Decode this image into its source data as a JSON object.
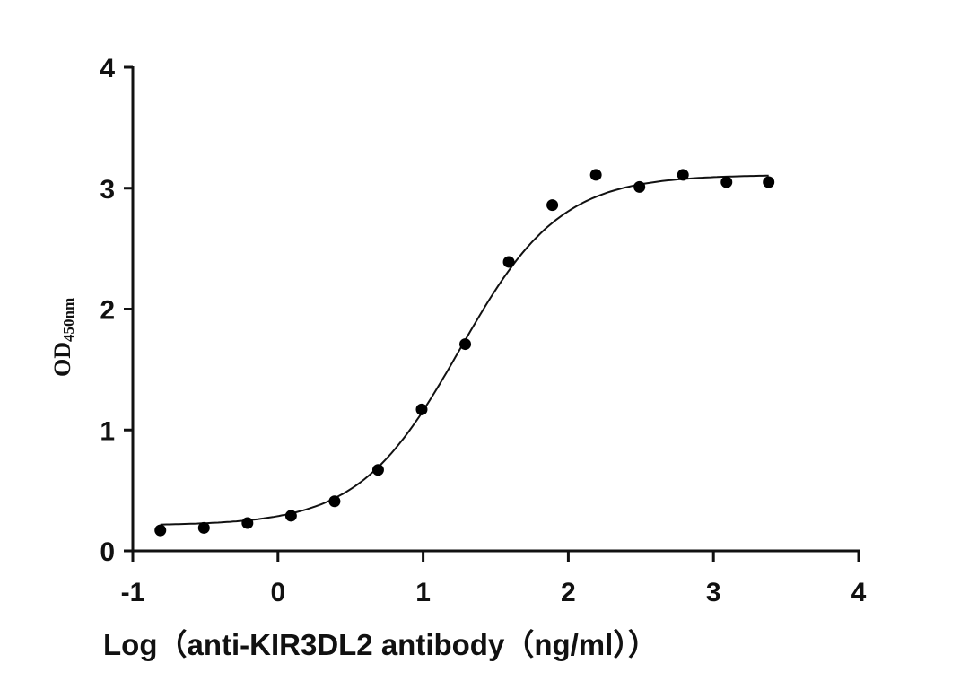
{
  "chart_data": {
    "type": "scatter",
    "title": "",
    "xlabel": "Log（anti-KIR3DL2 antibody（ng/ml））",
    "ylabel": "OD450nm",
    "ylabel_main": "OD",
    "ylabel_sub": "450nm",
    "xlim": [
      -1,
      4
    ],
    "ylim": [
      0,
      4
    ],
    "xticks": [
      -1,
      0,
      1,
      2,
      3,
      4
    ],
    "yticks": [
      0,
      1,
      2,
      3,
      4
    ],
    "grid": false,
    "legend": null,
    "fit": "sigmoidal 4PL curve",
    "series": [
      {
        "name": "anti-KIR3DL2 antibody",
        "marker": "filled circle",
        "color": "#000000",
        "x": [
          -0.81,
          -0.51,
          -0.21,
          0.09,
          0.39,
          0.69,
          0.99,
          1.29,
          1.59,
          1.89,
          2.19,
          2.49,
          2.79,
          3.09,
          3.38
        ],
        "y": [
          0.17,
          0.19,
          0.23,
          0.29,
          0.41,
          0.67,
          1.17,
          1.71,
          2.39,
          2.86,
          3.11,
          3.01,
          3.11,
          3.05,
          3.05
        ]
      }
    ],
    "curve": {
      "bottom": 0.21,
      "top": 3.11,
      "logEC50": 1.25,
      "hill": 1.25
    }
  }
}
